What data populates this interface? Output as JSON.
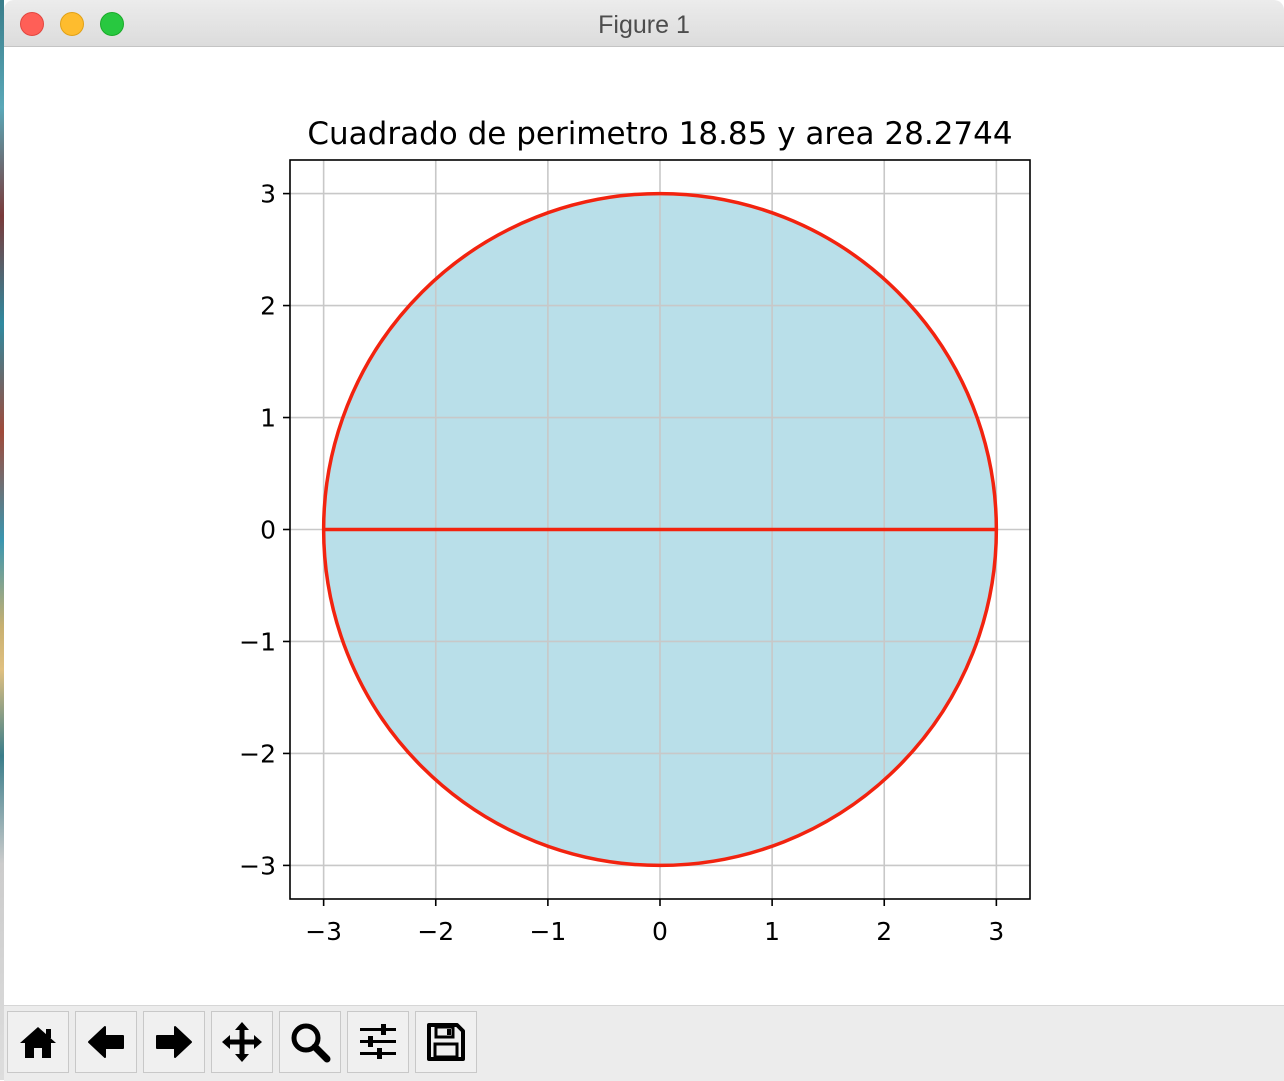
{
  "window": {
    "title": "Figure 1"
  },
  "toolbar": {
    "buttons": [
      {
        "name": "home",
        "icon": "home-icon"
      },
      {
        "name": "back",
        "icon": "arrow-left-icon"
      },
      {
        "name": "forward",
        "icon": "arrow-right-icon"
      },
      {
        "name": "pan",
        "icon": "move-icon"
      },
      {
        "name": "zoom",
        "icon": "magnifier-icon"
      },
      {
        "name": "configure-subplots",
        "icon": "sliders-icon"
      },
      {
        "name": "save",
        "icon": "floppy-disk-icon"
      }
    ]
  },
  "chart_data": {
    "type": "line",
    "title": "Cuadrado de perimetro 18.85 y area 28.2744",
    "xlabel": "",
    "ylabel": "",
    "xlim": [
      -3.3,
      3.3
    ],
    "ylim": [
      -3.3,
      3.3
    ],
    "xticks": [
      -3,
      -2,
      -1,
      0,
      1,
      2,
      3
    ],
    "yticks": [
      -3,
      -2,
      -1,
      0,
      1,
      2,
      3
    ],
    "xtick_labels": [
      "−3",
      "−2",
      "−1",
      "0",
      "1",
      "2",
      "3"
    ],
    "ytick_labels": [
      "−3",
      "−2",
      "−1",
      "0",
      "1",
      "2",
      "3"
    ],
    "grid": true,
    "shapes": [
      {
        "kind": "circle",
        "center": [
          0,
          0
        ],
        "radius": 3,
        "fill": "#b9dfe9",
        "edge": "#f2230f"
      },
      {
        "kind": "line",
        "x": [
          -3,
          3
        ],
        "y": [
          0,
          0
        ],
        "color": "#f2230f"
      }
    ]
  },
  "colors": {
    "fill": "#b9dfe9",
    "edge": "#f2230f",
    "grid": "#c8c8c8",
    "toolbar_bg": "#ececec"
  }
}
